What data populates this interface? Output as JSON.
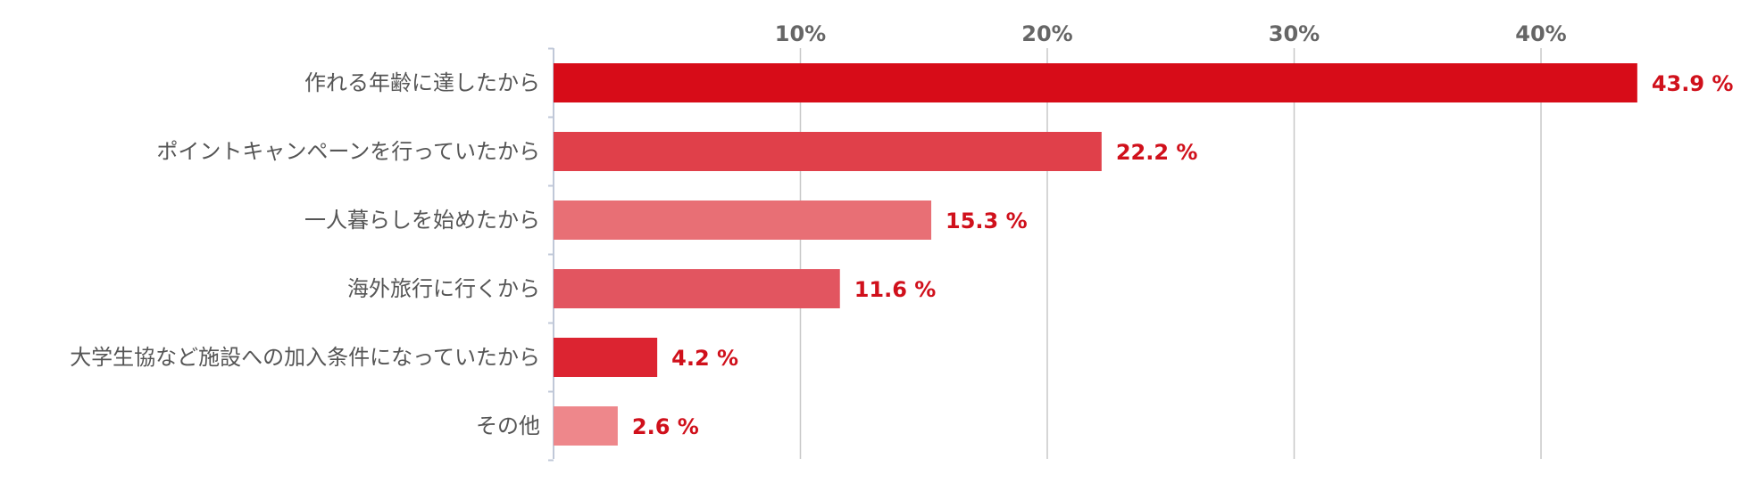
{
  "chart_data": {
    "type": "bar",
    "orientation": "horizontal",
    "categories": [
      "作れる年齢に達したから",
      "ポイントキャンペーンを行っていたから",
      "一人暮らしを始めたから",
      "海外旅行に行くから",
      "大学生協など施設への加入条件になっていたから",
      "その他"
    ],
    "values": [
      43.9,
      22.2,
      15.3,
      11.6,
      4.2,
      2.6
    ],
    "value_labels": [
      "43.9 %",
      "22.2 %",
      "15.3 %",
      "11.6 %",
      "4.2 %",
      "2.6 %"
    ],
    "ticks": [
      10,
      20,
      30,
      40
    ],
    "tick_labels": [
      "10%",
      "20%",
      "30%",
      "40%"
    ],
    "xlim": [
      0,
      47
    ],
    "xaxis_position": "top",
    "grid": true,
    "bar_colors": [
      "#d70c18",
      "#e0404a",
      "#e86f75",
      "#e25560",
      "#dc2431",
      "#ee878b"
    ],
    "value_label_color": "#d0101b",
    "gridline_color": "#c8c8c8",
    "axis_color": "#c0c8d8"
  }
}
